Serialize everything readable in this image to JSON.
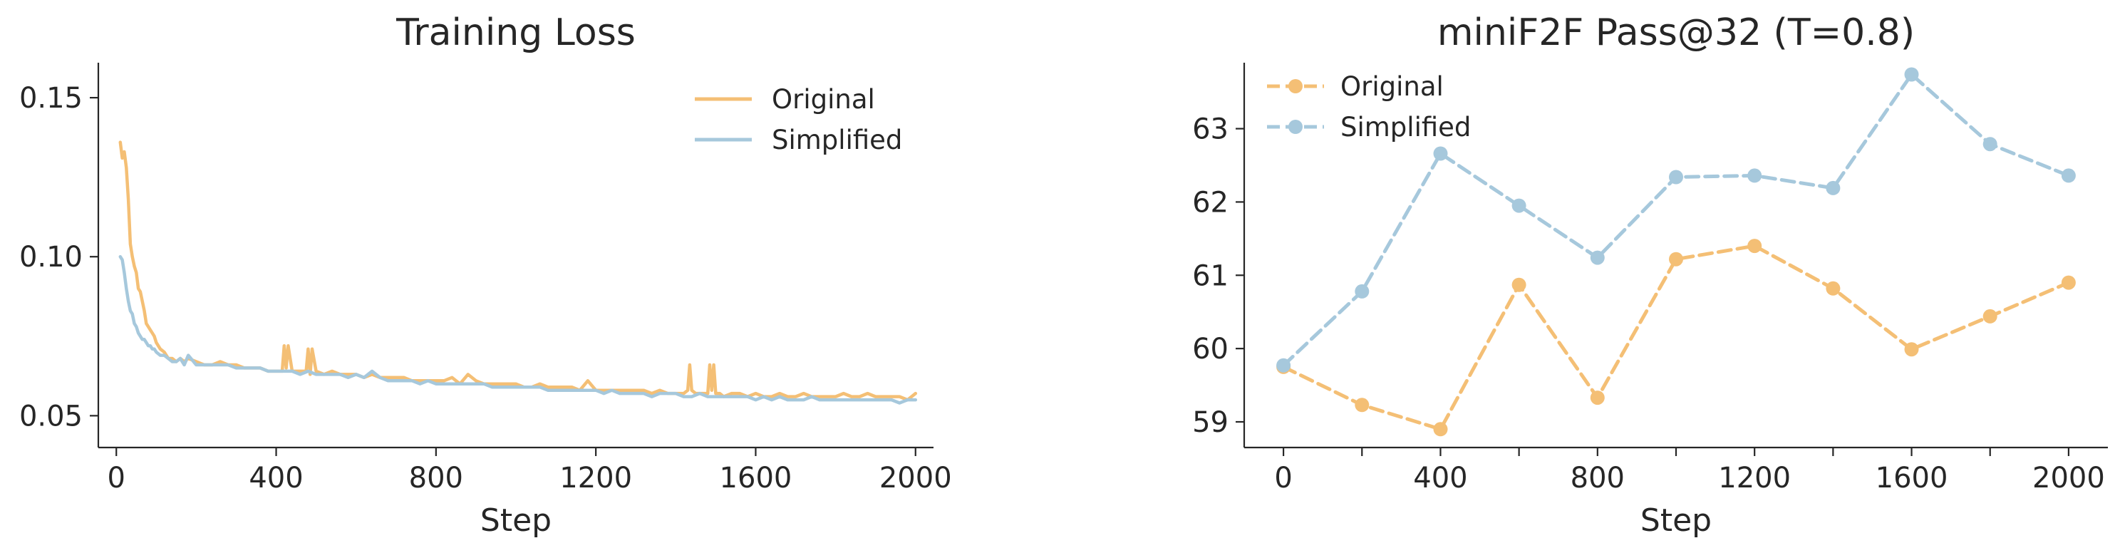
{
  "colors": {
    "original": "#f4bf75",
    "simplified": "#a6c8dc",
    "text": "#262626",
    "axis": "#262626"
  },
  "chart_data": [
    {
      "type": "line",
      "title": "Training Loss",
      "xlabel": "Step",
      "ylabel": "",
      "xlim": [
        -45,
        2045
      ],
      "ylim": [
        0.04,
        0.161
      ],
      "xticks": [
        0,
        400,
        800,
        1200,
        1600,
        2000
      ],
      "xtick_labels": [
        "0",
        "400",
        "800",
        "1200",
        "1600",
        "2000"
      ],
      "yticks": [
        0.05,
        0.1,
        0.15
      ],
      "ytick_labels": [
        "0.05",
        "0.10",
        "0.15"
      ],
      "grid": false,
      "legend": "upper right",
      "series": [
        {
          "name": "Original",
          "color_key": "original",
          "style": "solid",
          "x": [
            10,
            15,
            20,
            25,
            30,
            35,
            40,
            45,
            50,
            55,
            60,
            65,
            70,
            75,
            80,
            85,
            90,
            95,
            100,
            110,
            120,
            130,
            140,
            150,
            160,
            170,
            180,
            200,
            220,
            240,
            260,
            280,
            300,
            320,
            340,
            360,
            380,
            400,
            415,
            420,
            425,
            430,
            440,
            460,
            475,
            480,
            485,
            490,
            500,
            520,
            540,
            560,
            580,
            600,
            620,
            640,
            660,
            680,
            700,
            720,
            740,
            760,
            780,
            800,
            820,
            840,
            860,
            880,
            900,
            920,
            940,
            960,
            980,
            1000,
            1020,
            1040,
            1060,
            1080,
            1100,
            1120,
            1140,
            1160,
            1180,
            1200,
            1220,
            1240,
            1260,
            1280,
            1300,
            1320,
            1340,
            1360,
            1380,
            1400,
            1420,
            1430,
            1435,
            1440,
            1450,
            1460,
            1470,
            1480,
            1485,
            1490,
            1495,
            1500,
            1510,
            1520,
            1540,
            1560,
            1580,
            1600,
            1620,
            1640,
            1660,
            1680,
            1700,
            1720,
            1740,
            1760,
            1780,
            1800,
            1820,
            1840,
            1860,
            1880,
            1900,
            1920,
            1940,
            1960,
            1980,
            2000
          ],
          "y": [
            0.136,
            0.131,
            0.133,
            0.128,
            0.118,
            0.104,
            0.1,
            0.097,
            0.095,
            0.09,
            0.089,
            0.086,
            0.083,
            0.079,
            0.078,
            0.077,
            0.076,
            0.075,
            0.073,
            0.071,
            0.07,
            0.068,
            0.068,
            0.067,
            0.068,
            0.067,
            0.068,
            0.067,
            0.066,
            0.066,
            0.067,
            0.066,
            0.066,
            0.065,
            0.065,
            0.065,
            0.064,
            0.064,
            0.064,
            0.072,
            0.065,
            0.072,
            0.064,
            0.064,
            0.064,
            0.071,
            0.063,
            0.071,
            0.064,
            0.063,
            0.064,
            0.063,
            0.063,
            0.063,
            0.062,
            0.063,
            0.062,
            0.062,
            0.062,
            0.062,
            0.061,
            0.061,
            0.061,
            0.061,
            0.061,
            0.062,
            0.06,
            0.063,
            0.061,
            0.06,
            0.06,
            0.06,
            0.06,
            0.06,
            0.059,
            0.059,
            0.06,
            0.059,
            0.059,
            0.059,
            0.059,
            0.058,
            0.061,
            0.058,
            0.058,
            0.058,
            0.058,
            0.058,
            0.058,
            0.058,
            0.057,
            0.058,
            0.057,
            0.057,
            0.057,
            0.058,
            0.066,
            0.058,
            0.057,
            0.057,
            0.057,
            0.057,
            0.066,
            0.058,
            0.066,
            0.057,
            0.057,
            0.056,
            0.057,
            0.057,
            0.056,
            0.057,
            0.056,
            0.056,
            0.057,
            0.056,
            0.056,
            0.057,
            0.056,
            0.056,
            0.056,
            0.056,
            0.057,
            0.056,
            0.056,
            0.057,
            0.056,
            0.056,
            0.056,
            0.056,
            0.055,
            0.057
          ]
        },
        {
          "name": "Simplified",
          "color_key": "simplified",
          "style": "solid",
          "x": [
            10,
            15,
            20,
            25,
            30,
            35,
            40,
            45,
            50,
            55,
            60,
            65,
            70,
            75,
            80,
            85,
            90,
            95,
            100,
            110,
            120,
            130,
            140,
            150,
            160,
            170,
            180,
            200,
            220,
            240,
            260,
            280,
            300,
            320,
            340,
            360,
            380,
            400,
            420,
            440,
            460,
            480,
            500,
            520,
            540,
            560,
            580,
            600,
            620,
            640,
            660,
            680,
            700,
            720,
            740,
            760,
            780,
            800,
            820,
            840,
            860,
            880,
            900,
            920,
            940,
            960,
            980,
            1000,
            1020,
            1040,
            1060,
            1080,
            1100,
            1120,
            1140,
            1160,
            1180,
            1200,
            1220,
            1240,
            1260,
            1280,
            1300,
            1320,
            1340,
            1360,
            1380,
            1400,
            1420,
            1440,
            1460,
            1480,
            1500,
            1520,
            1540,
            1560,
            1580,
            1600,
            1620,
            1640,
            1660,
            1680,
            1700,
            1720,
            1740,
            1760,
            1780,
            1800,
            1820,
            1840,
            1860,
            1880,
            1900,
            1920,
            1940,
            1960,
            1980,
            2000
          ],
          "y": [
            0.1,
            0.099,
            0.095,
            0.09,
            0.086,
            0.083,
            0.082,
            0.079,
            0.078,
            0.076,
            0.075,
            0.074,
            0.074,
            0.073,
            0.072,
            0.072,
            0.071,
            0.071,
            0.07,
            0.069,
            0.069,
            0.068,
            0.067,
            0.067,
            0.068,
            0.066,
            0.069,
            0.066,
            0.066,
            0.066,
            0.066,
            0.066,
            0.065,
            0.065,
            0.065,
            0.065,
            0.064,
            0.064,
            0.064,
            0.064,
            0.063,
            0.064,
            0.063,
            0.063,
            0.063,
            0.063,
            0.062,
            0.063,
            0.062,
            0.064,
            0.062,
            0.061,
            0.061,
            0.061,
            0.061,
            0.06,
            0.061,
            0.06,
            0.06,
            0.06,
            0.06,
            0.06,
            0.06,
            0.06,
            0.059,
            0.059,
            0.059,
            0.059,
            0.059,
            0.059,
            0.059,
            0.058,
            0.058,
            0.058,
            0.058,
            0.058,
            0.058,
            0.058,
            0.057,
            0.058,
            0.057,
            0.057,
            0.057,
            0.057,
            0.056,
            0.057,
            0.057,
            0.057,
            0.056,
            0.056,
            0.057,
            0.056,
            0.056,
            0.056,
            0.056,
            0.056,
            0.056,
            0.055,
            0.056,
            0.055,
            0.056,
            0.055,
            0.055,
            0.055,
            0.056,
            0.055,
            0.055,
            0.055,
            0.055,
            0.055,
            0.055,
            0.055,
            0.055,
            0.055,
            0.055,
            0.054,
            0.055,
            0.055
          ]
        }
      ]
    },
    {
      "type": "line",
      "title": "miniF2F Pass@32 (T=0.8)",
      "xlabel": "Step",
      "ylabel": "",
      "xlim": [
        -100,
        2100
      ],
      "ylim": [
        58.65,
        63.9
      ],
      "xticks": [
        0,
        200,
        400,
        600,
        800,
        1000,
        1200,
        1400,
        1600,
        1800,
        2000
      ],
      "xtick_labels": [
        "0",
        "",
        "400",
        "",
        "800",
        "",
        "1200",
        "",
        "1600",
        "",
        "2000"
      ],
      "yticks": [
        59,
        60,
        61,
        62,
        63
      ],
      "ytick_labels": [
        "59",
        "60",
        "61",
        "62",
        "63"
      ],
      "grid": false,
      "legend": "upper left",
      "series": [
        {
          "name": "Original",
          "color_key": "original",
          "style": "dashed",
          "markers": true,
          "x": [
            0,
            200,
            400,
            600,
            800,
            1000,
            1200,
            1400,
            1600,
            1800,
            2000
          ],
          "y": [
            59.75,
            59.23,
            58.9,
            60.87,
            59.33,
            61.22,
            61.4,
            60.82,
            59.99,
            60.44,
            60.9
          ]
        },
        {
          "name": "Simplified",
          "color_key": "simplified",
          "style": "dashed",
          "markers": true,
          "x": [
            0,
            200,
            400,
            600,
            800,
            1000,
            1200,
            1400,
            1600,
            1800,
            2000
          ],
          "y": [
            59.77,
            60.78,
            62.66,
            61.95,
            61.24,
            62.34,
            62.36,
            62.19,
            63.74,
            62.79,
            62.36
          ]
        }
      ]
    }
  ]
}
